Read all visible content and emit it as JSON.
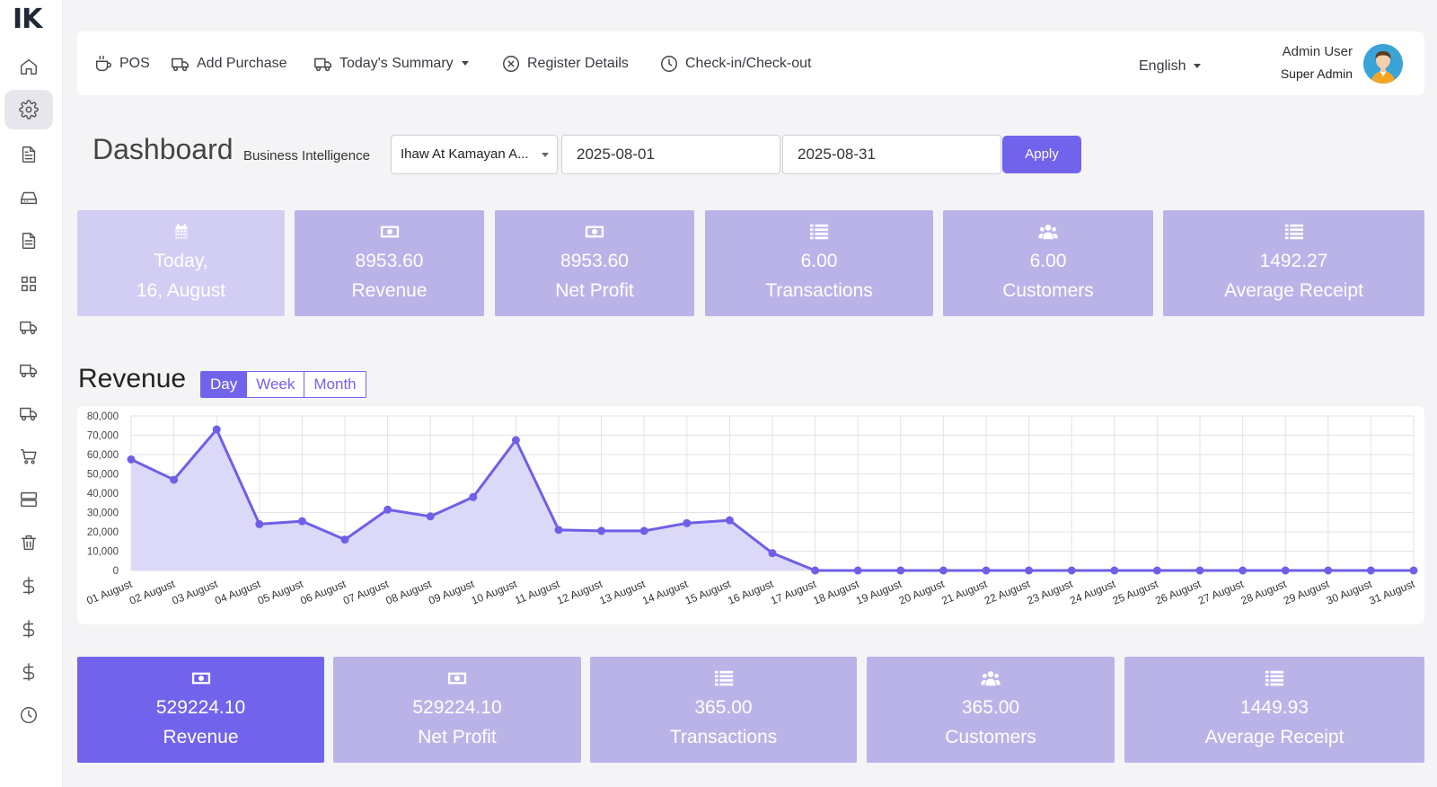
{
  "app": {
    "logo": "IK"
  },
  "sidebar": {
    "items": [
      {
        "icon": "home-icon"
      },
      {
        "icon": "gear-icon",
        "active": true
      },
      {
        "icon": "document-icon"
      },
      {
        "icon": "drive-icon"
      },
      {
        "icon": "file-text-icon"
      },
      {
        "icon": "grid-icon"
      },
      {
        "icon": "truck-icon"
      },
      {
        "icon": "truck-icon"
      },
      {
        "icon": "truck-icon"
      },
      {
        "icon": "cart-icon"
      },
      {
        "icon": "server-icon"
      },
      {
        "icon": "trash-icon"
      },
      {
        "icon": "dollar-icon"
      },
      {
        "icon": "dollar-icon"
      },
      {
        "icon": "dollar-icon"
      },
      {
        "icon": "clock-icon"
      }
    ]
  },
  "topbar": {
    "pos": "POS",
    "add_purchase": "Add Purchase",
    "todays_summary": "Today's Summary",
    "register_details": "Register Details",
    "check_in_out": "Check-in/Check-out",
    "language": "English",
    "user_name": "Admin User",
    "user_role": "Super Admin"
  },
  "header": {
    "title": "Dashboard",
    "subtitle": "Business Intelligence",
    "location": "Ihaw At Kamayan A...",
    "date_from": "2025-08-01",
    "date_to": "2025-08-31",
    "apply": "Apply"
  },
  "top_cards": [
    {
      "line1": "Today,",
      "line2": "16, August",
      "icon": "calendar-icon"
    },
    {
      "line1": "8953.60",
      "line2": "Revenue",
      "icon": "money-icon"
    },
    {
      "line1": "8953.60",
      "line2": "Net Profit",
      "icon": "money-icon"
    },
    {
      "line1": "6.00",
      "line2": "Transactions",
      "icon": "list-icon"
    },
    {
      "line1": "6.00",
      "line2": "Customers",
      "icon": "users-icon"
    },
    {
      "line1": "1492.27",
      "line2": "Average Receipt",
      "icon": "list-icon"
    }
  ],
  "revenue": {
    "title": "Revenue",
    "tabs": {
      "day": "Day",
      "week": "Week",
      "month": "Month"
    },
    "active_tab": "Day"
  },
  "chart_data": {
    "type": "area",
    "title": "Revenue",
    "categories": [
      "01 August",
      "02 August",
      "03 August",
      "04 August",
      "05 August",
      "06 August",
      "07 August",
      "08 August",
      "09 August",
      "10 August",
      "11 August",
      "12 August",
      "13 August",
      "14 August",
      "15 August",
      "16 August",
      "17 August",
      "18 August",
      "19 August",
      "20 August",
      "21 August",
      "22 August",
      "23 August",
      "24 August",
      "25 August",
      "26 August",
      "27 August",
      "28 August",
      "29 August",
      "30 August",
      "31 August"
    ],
    "values": [
      57500,
      47000,
      73000,
      24000,
      25500,
      16000,
      31500,
      28000,
      38000,
      67500,
      21000,
      20500,
      20500,
      24500,
      26000,
      9000,
      0,
      0,
      0,
      0,
      0,
      0,
      0,
      0,
      0,
      0,
      0,
      0,
      0,
      0,
      0
    ],
    "ylim": [
      0,
      80000
    ],
    "yticks": [
      "0",
      "10,000",
      "20,000",
      "30,000",
      "40,000",
      "50,000",
      "60,000",
      "70,000",
      "80,000"
    ],
    "yticks_values": [
      0,
      10000,
      20000,
      30000,
      40000,
      50000,
      60000,
      70000,
      80000
    ],
    "line_color": "#6f5fe6",
    "fill_color": "#dcd8f8",
    "grid": true
  },
  "bottom_cards": [
    {
      "line1": "529224.10",
      "line2": "Revenue",
      "icon": "money-icon"
    },
    {
      "line1": "529224.10",
      "line2": "Net Profit",
      "icon": "money-icon"
    },
    {
      "line1": "365.00",
      "line2": "Transactions",
      "icon": "list-icon"
    },
    {
      "line1": "365.00",
      "line2": "Customers",
      "icon": "users-icon"
    },
    {
      "line1": "1449.93",
      "line2": "Average Receipt",
      "icon": "list-icon"
    }
  ]
}
